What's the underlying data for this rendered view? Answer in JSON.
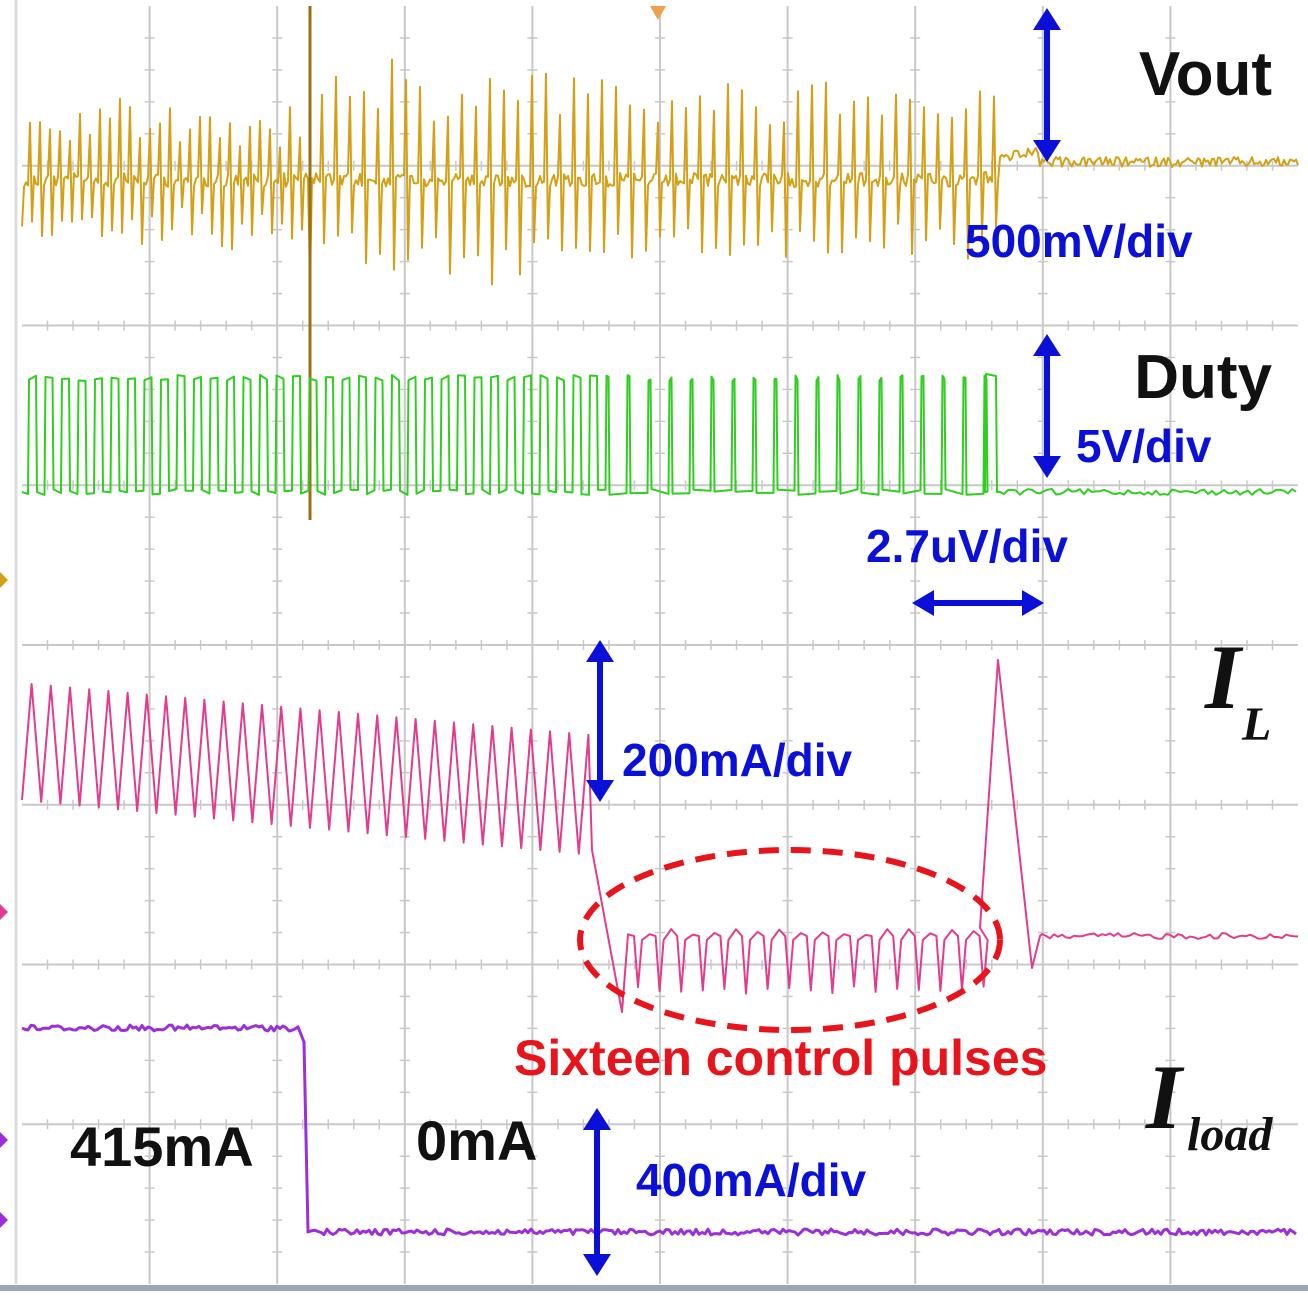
{
  "chart_data": {
    "type": "line",
    "grid": true,
    "divisions": {
      "horizontal": 10,
      "vertical": 8
    },
    "colors": {
      "grid": "#c8c8c8",
      "frame": "#9aa7b8",
      "arrow": "#0a10d8",
      "annotation": "#e8141c",
      "vout": "#d4a017",
      "duty": "#2fcf1f",
      "il": "#e23c8c",
      "iload": "#9b30d9"
    },
    "series": [
      {
        "key": "vout",
        "name": "Vout"
      },
      {
        "key": "duty",
        "name": "Duty"
      },
      {
        "key": "il",
        "name": "I",
        "subscript": "L"
      },
      {
        "key": "iload",
        "name": "I",
        "subscript": "load"
      }
    ],
    "scales": {
      "vout": "500mV/div",
      "duty": "5V/div",
      "time": "2.7uV/div",
      "il": "200mA/div",
      "iload": "400mA/div"
    },
    "annotations": {
      "pulses": "Sixteen control pulses",
      "load_before": "415mA",
      "load_after": "0mA"
    }
  }
}
